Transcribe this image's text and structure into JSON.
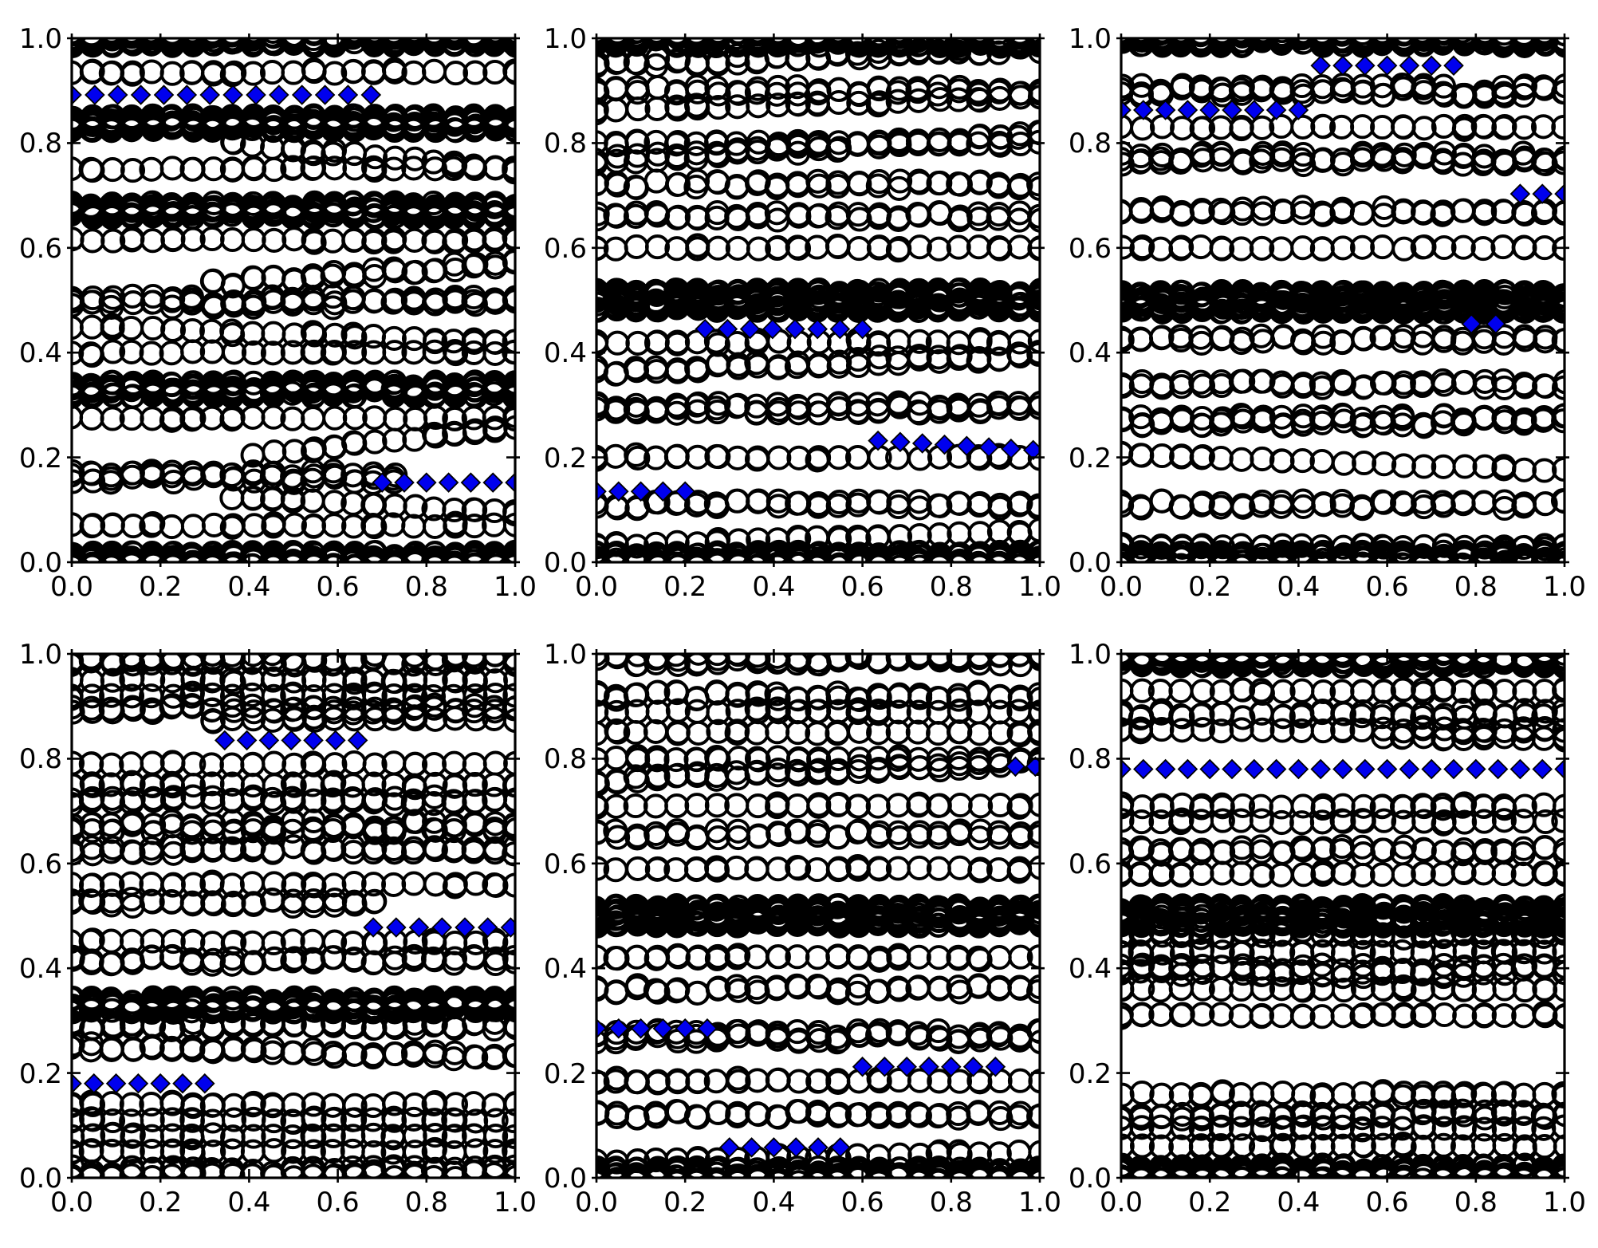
{
  "figure": {
    "background": "#ffffff",
    "n_subplots": 6,
    "grid": "2 rows x 3 columns"
  },
  "style": {
    "circle_edge_color": "#000000",
    "diamond_fill_color": "#0000ee",
    "diamond_edge_color": "#000000",
    "frame_color": "#000000",
    "tick_label_color": "#000000"
  },
  "axes": {
    "xlim": [
      0,
      1
    ],
    "ylim": [
      0,
      1
    ],
    "xtick_labels": [
      "0.0",
      "0.2",
      "0.4",
      "0.6",
      "0.8",
      "1.0"
    ],
    "ytick_labels": [
      "0.0",
      "0.2",
      "0.4",
      "0.6",
      "0.8",
      "1.0"
    ],
    "tick_values": [
      0,
      0.2,
      0.4,
      0.6,
      0.8,
      1.0
    ]
  },
  "chart_data": {
    "type": "scatter",
    "description": "Six subplots, each a dense scatter of open black circle markers arranged in ~23 x-columns and horizontal bands (m = overplot multiplicity; drift = total y change across the row), plus runs of blue filled diamond markers.",
    "n_cols": 23,
    "subplots": [
      {
        "position": "top-left",
        "seed": 3,
        "circle_rows": [
          {
            "y": 1.0,
            "m": 4
          },
          {
            "y": 0.935,
            "m": 1
          },
          {
            "y": 0.838,
            "m": 4
          },
          {
            "y": 0.8,
            "m": 1,
            "x0": 0.35,
            "x1": 1.0,
            "drift": -0.05
          },
          {
            "y": 0.75,
            "m": 1
          },
          {
            "y": 0.672,
            "m": 4
          },
          {
            "y": 0.615,
            "m": 1
          },
          {
            "y": 0.53,
            "m": 2,
            "x0": 0.3,
            "x1": 1.0,
            "drift": 0.04
          },
          {
            "y": 0.497,
            "m": 3
          },
          {
            "y": 0.45,
            "m": 1,
            "drift": -0.03
          },
          {
            "y": 0.4,
            "m": 1
          },
          {
            "y": 0.33,
            "m": 4
          },
          {
            "y": 0.275,
            "m": 1
          },
          {
            "y": 0.205,
            "m": 1,
            "x0": 0.4,
            "x1": 1.0,
            "drift": 0.05
          },
          {
            "y": 0.163,
            "m": 3,
            "x0": 0.0,
            "x1": 0.75
          },
          {
            "y": 0.125,
            "m": 1,
            "x0": 0.35,
            "x1": 1.0,
            "drift": -0.03
          },
          {
            "y": 0.07,
            "m": 1
          },
          {
            "y": 0.005,
            "m": 4
          }
        ],
        "diamond_runs": [
          {
            "y": 0.892,
            "x0": 0.0,
            "x1": 0.675,
            "n": 14
          },
          {
            "y": 0.152,
            "x0": 0.7,
            "x1": 1.0,
            "n": 7
          }
        ]
      },
      {
        "position": "top-middle",
        "seed": 7,
        "circle_rows": [
          {
            "y": 1.0,
            "m": 4
          },
          {
            "y": 0.95,
            "m": 2,
            "drift": 0.03
          },
          {
            "y": 0.9,
            "m": 2
          },
          {
            "y": 0.862,
            "m": 1,
            "drift": 0.025
          },
          {
            "y": 0.8,
            "m": 1
          },
          {
            "y": 0.765,
            "m": 2,
            "drift": 0.05
          },
          {
            "y": 0.72,
            "m": 2
          },
          {
            "y": 0.66,
            "m": 2
          },
          {
            "y": 0.6,
            "m": 1
          },
          {
            "y": 0.5,
            "m": 6
          },
          {
            "y": 0.42,
            "m": 1
          },
          {
            "y": 0.365,
            "m": 2,
            "drift": 0.03
          },
          {
            "y": 0.295,
            "m": 3
          },
          {
            "y": 0.2,
            "m": 1
          },
          {
            "y": 0.11,
            "m": 2
          },
          {
            "y": 0.03,
            "m": 1,
            "drift": 0.03
          },
          {
            "y": 0.005,
            "m": 4
          }
        ],
        "diamond_runs": [
          {
            "y": 0.445,
            "x0": 0.245,
            "x1": 0.6,
            "n": 8
          },
          {
            "y": 0.232,
            "x0": 0.635,
            "x1": 0.985,
            "n": 8,
            "drift": -0.018
          },
          {
            "y": 0.135,
            "x0": 0.0,
            "x1": 0.2,
            "n": 5
          }
        ]
      },
      {
        "position": "top-right",
        "seed": 11,
        "circle_rows": [
          {
            "y": 1.0,
            "m": 4
          },
          {
            "y": 0.9,
            "m": 3
          },
          {
            "y": 0.83,
            "m": 1
          },
          {
            "y": 0.77,
            "m": 3
          },
          {
            "y": 0.67,
            "m": 2
          },
          {
            "y": 0.6,
            "m": 1
          },
          {
            "y": 0.497,
            "m": 6
          },
          {
            "y": 0.425,
            "m": 2
          },
          {
            "y": 0.34,
            "m": 2
          },
          {
            "y": 0.27,
            "m": 3
          },
          {
            "y": 0.205,
            "m": 1,
            "drift": -0.03
          },
          {
            "y": 0.11,
            "m": 2
          },
          {
            "y": 0.03,
            "m": 1
          },
          {
            "y": 0.005,
            "m": 4
          }
        ],
        "diamond_runs": [
          {
            "y": 0.948,
            "x0": 0.45,
            "x1": 0.75,
            "n": 7
          },
          {
            "y": 0.863,
            "x0": 0.0,
            "x1": 0.4,
            "n": 9
          },
          {
            "y": 0.703,
            "x0": 0.9,
            "x1": 1.0,
            "n": 3
          },
          {
            "y": 0.455,
            "x0": 0.79,
            "x1": 0.845,
            "n": 2
          }
        ]
      },
      {
        "position": "bottom-left",
        "seed": 13,
        "circle_rows": [
          {
            "y": 0.99,
            "m": 3
          },
          {
            "y": 0.95,
            "m": 1
          },
          {
            "y": 0.92,
            "m": 1
          },
          {
            "y": 0.895,
            "m": 2
          },
          {
            "y": 0.875,
            "m": 1,
            "x0": 0.3,
            "x1": 1.0
          },
          {
            "y": 0.79,
            "m": 1
          },
          {
            "y": 0.75,
            "m": 1
          },
          {
            "y": 0.72,
            "m": 2
          },
          {
            "y": 0.67,
            "m": 3
          },
          {
            "y": 0.625,
            "m": 2
          },
          {
            "y": 0.56,
            "m": 1
          },
          {
            "y": 0.525,
            "m": 2,
            "x0": 0.0,
            "x1": 0.7
          },
          {
            "y": 0.45,
            "m": 1
          },
          {
            "y": 0.415,
            "m": 2
          },
          {
            "y": 0.33,
            "m": 4
          },
          {
            "y": 0.29,
            "m": 2
          },
          {
            "y": 0.25,
            "m": 2,
            "drift": -0.02
          },
          {
            "y": 0.14,
            "m": 1
          },
          {
            "y": 0.11,
            "m": 1
          },
          {
            "y": 0.08,
            "m": 1
          },
          {
            "y": 0.05,
            "m": 1
          },
          {
            "y": 0.01,
            "m": 3
          }
        ],
        "diamond_runs": [
          {
            "y": 0.835,
            "x0": 0.345,
            "x1": 0.645,
            "n": 7
          },
          {
            "y": 0.478,
            "x0": 0.68,
            "x1": 0.99,
            "n": 7
          },
          {
            "y": 0.18,
            "x0": 0.0,
            "x1": 0.3,
            "n": 7
          }
        ]
      },
      {
        "position": "bottom-middle",
        "seed": 17,
        "circle_rows": [
          {
            "y": 0.99,
            "m": 3
          },
          {
            "y": 0.92,
            "m": 2
          },
          {
            "y": 0.89,
            "m": 1
          },
          {
            "y": 0.85,
            "m": 1
          },
          {
            "y": 0.8,
            "m": 1
          },
          {
            "y": 0.755,
            "m": 2,
            "drift": 0.04
          },
          {
            "y": 0.71,
            "m": 1
          },
          {
            "y": 0.655,
            "m": 2
          },
          {
            "y": 0.59,
            "m": 1
          },
          {
            "y": 0.5,
            "m": 6
          },
          {
            "y": 0.42,
            "m": 1
          },
          {
            "y": 0.36,
            "m": 2
          },
          {
            "y": 0.27,
            "m": 3
          },
          {
            "y": 0.185,
            "m": 1
          },
          {
            "y": 0.12,
            "m": 2
          },
          {
            "y": 0.03,
            "m": 1,
            "drift": 0.02
          },
          {
            "y": 0.005,
            "m": 4
          }
        ],
        "diamond_runs": [
          {
            "y": 0.785,
            "x0": 0.945,
            "x1": 0.99,
            "n": 2
          },
          {
            "y": 0.285,
            "x0": 0.0,
            "x1": 0.25,
            "n": 6
          },
          {
            "y": 0.212,
            "x0": 0.6,
            "x1": 0.9,
            "n": 7
          },
          {
            "y": 0.058,
            "x0": 0.3,
            "x1": 0.55,
            "n": 6
          }
        ]
      },
      {
        "position": "bottom-right",
        "seed": 23,
        "circle_rows": [
          {
            "y": 0.99,
            "m": 4
          },
          {
            "y": 0.93,
            "m": 1
          },
          {
            "y": 0.885,
            "m": 2
          },
          {
            "y": 0.855,
            "m": 1
          },
          {
            "y": 0.84,
            "m": 1,
            "x0": 0.55,
            "x1": 1.0
          },
          {
            "y": 0.71,
            "m": 1
          },
          {
            "y": 0.68,
            "m": 1
          },
          {
            "y": 0.625,
            "m": 2
          },
          {
            "y": 0.58,
            "m": 1
          },
          {
            "y": 0.5,
            "m": 6
          },
          {
            "y": 0.465,
            "m": 2
          },
          {
            "y": 0.43,
            "m": 1
          },
          {
            "y": 0.395,
            "m": 3
          },
          {
            "y": 0.36,
            "m": 1
          },
          {
            "y": 0.31,
            "m": 1
          },
          {
            "y": 0.16,
            "m": 1
          },
          {
            "y": 0.12,
            "m": 2
          },
          {
            "y": 0.095,
            "m": 1
          },
          {
            "y": 0.06,
            "m": 1
          },
          {
            "y": 0.01,
            "m": 4
          }
        ],
        "diamond_runs": [
          {
            "y": 0.78,
            "x0": 0.0,
            "x1": 1.0,
            "n": 21
          }
        ]
      }
    ]
  }
}
